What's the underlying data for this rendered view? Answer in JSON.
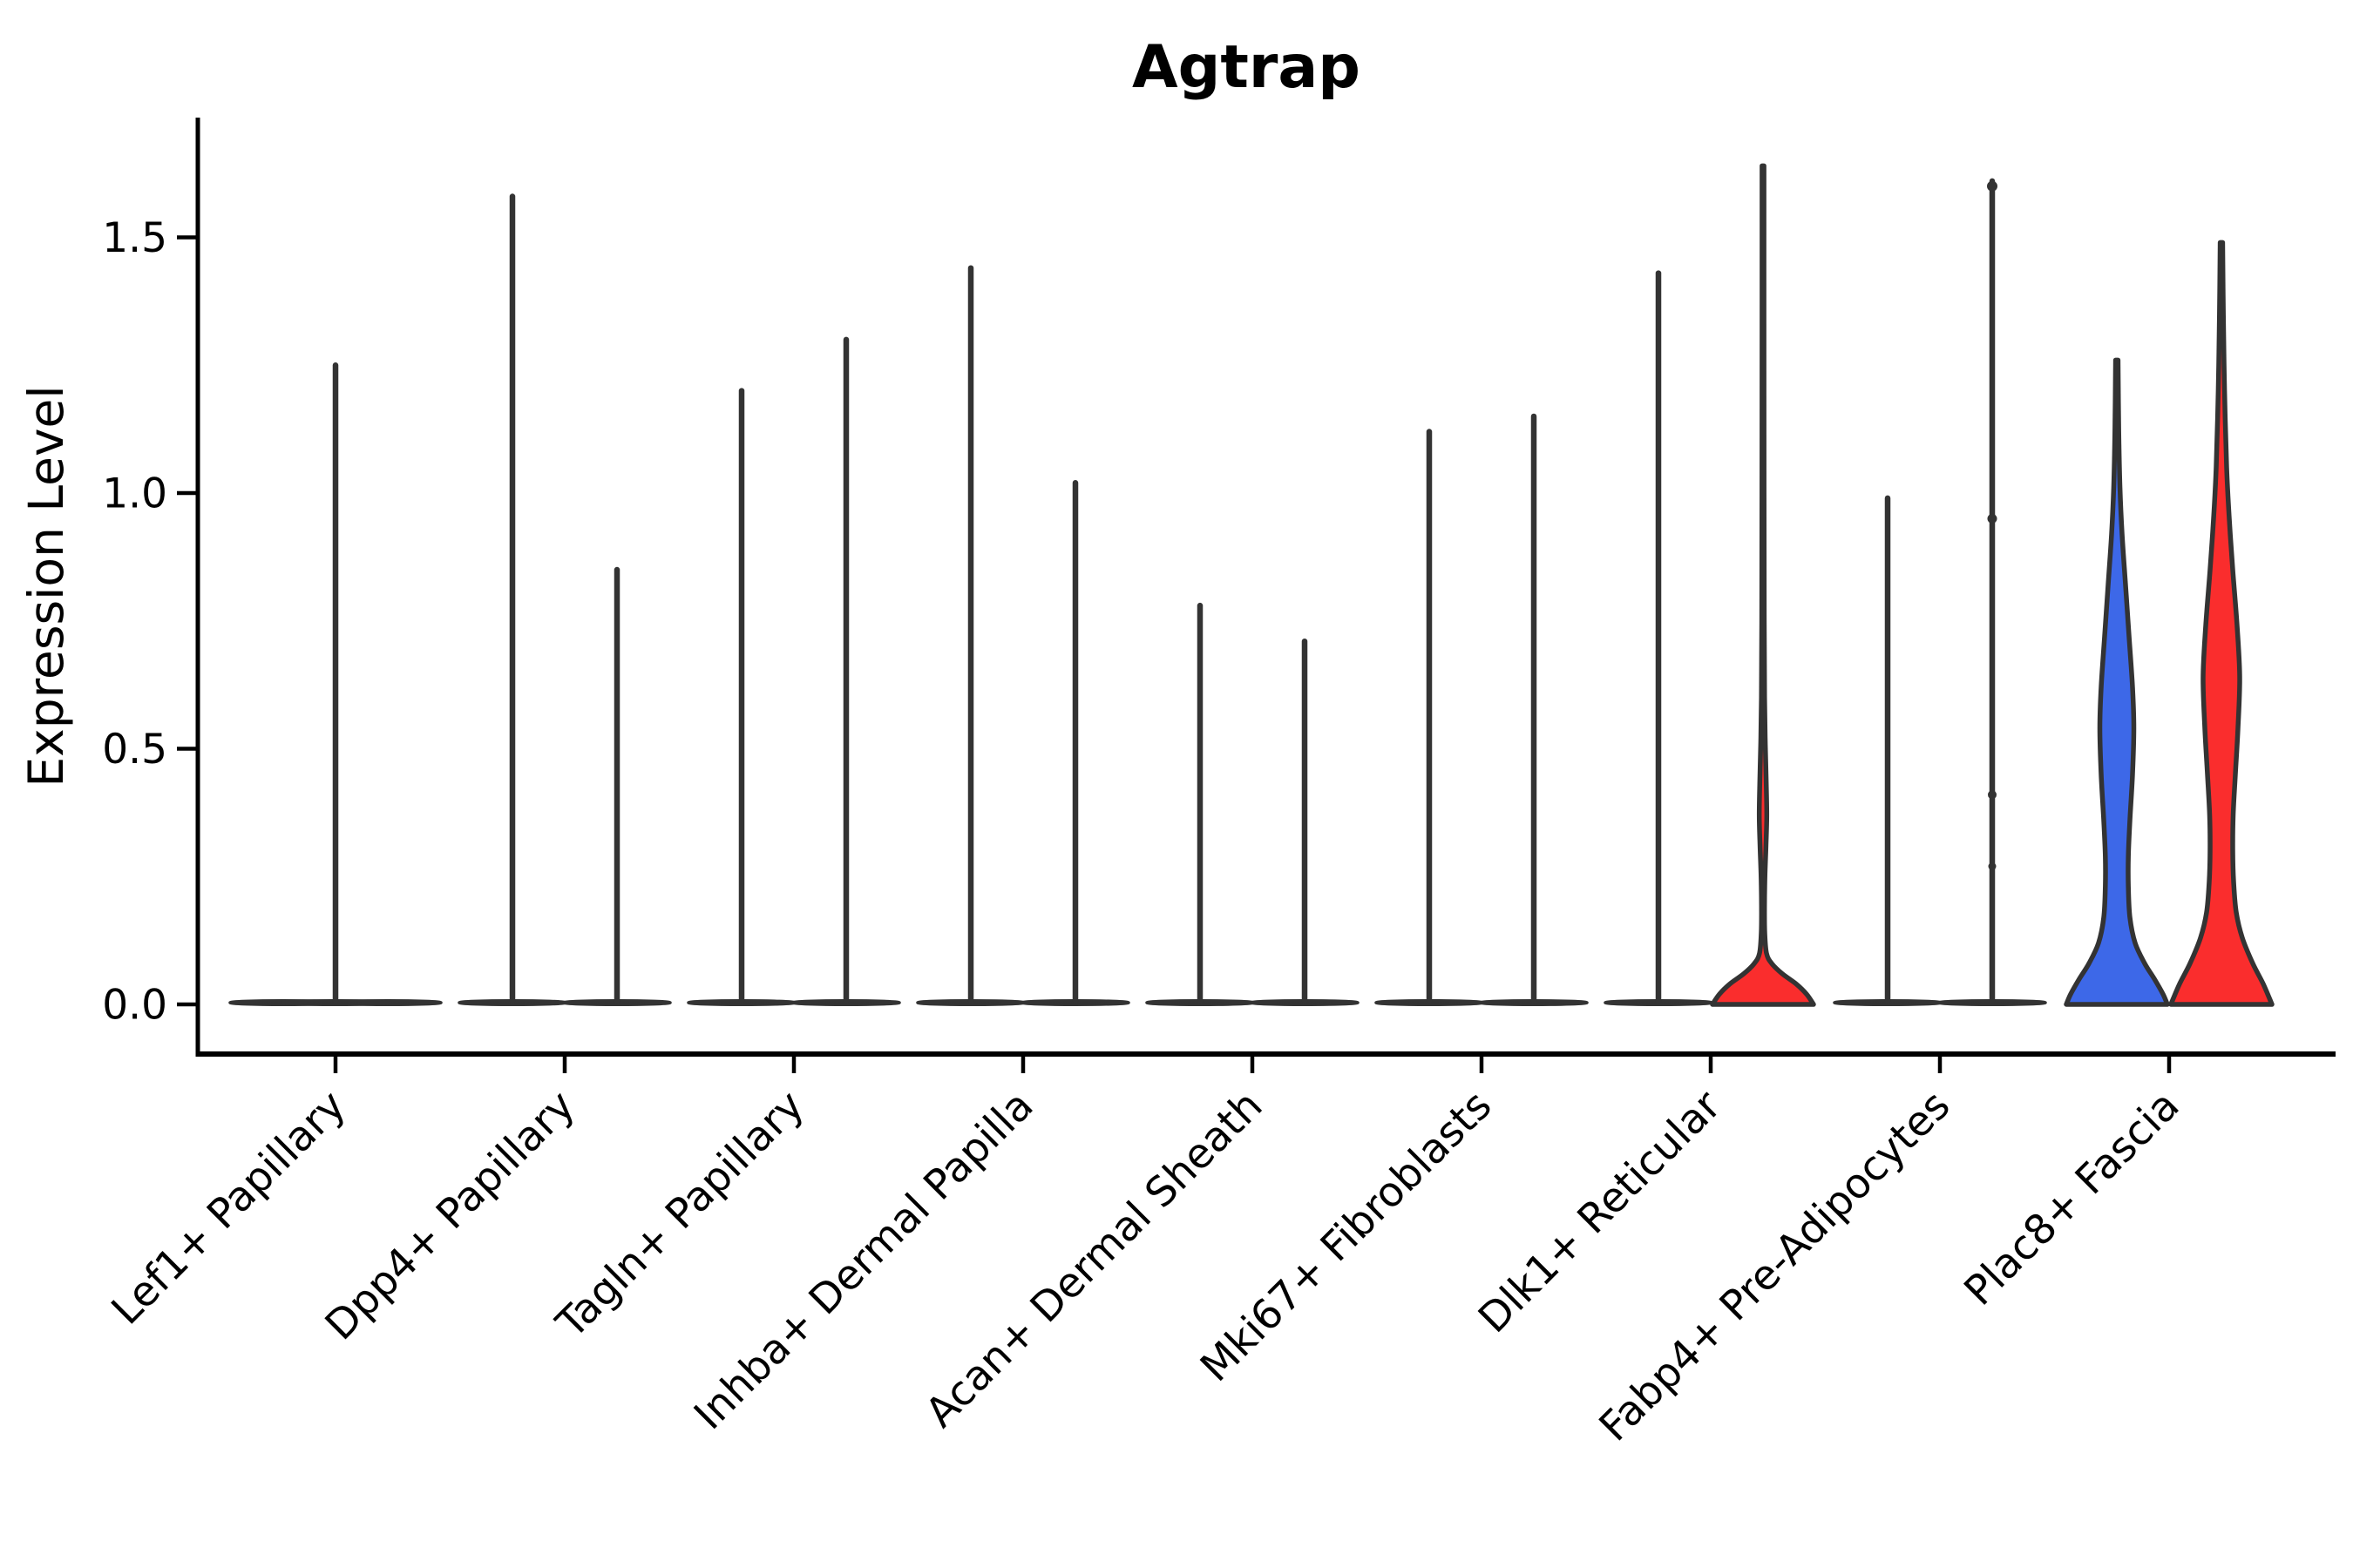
{
  "title": "Agtrap",
  "axes": {
    "ylabel": "Expression Level",
    "ytick_labels": [
      "0.0",
      "0.5",
      "1.0",
      "1.5"
    ]
  },
  "colors": {
    "blue_fill": "#3D68E8",
    "red_fill": "#FA2D2D",
    "outline": "#333333",
    "axis": "#000000"
  },
  "chart_data": {
    "type": "violin",
    "title": "Agtrap",
    "ylabel": "Expression Level",
    "yticks": [
      0.0,
      0.5,
      1.0,
      1.5
    ],
    "ylim": [
      -0.1,
      1.73
    ],
    "grid": false,
    "legend": "none",
    "categories": [
      "Lef1+ Papillary",
      "Dpp4+ Papillary",
      "Tagln+ Papillary",
      "Inhba+ Dermal Papilla",
      "Acan+ Dermal Sheath",
      "Mki67+ Fibroblasts",
      "Dlk1+ Reticular",
      "Fabp4+ Pre-Adipocytes",
      "Plac8+ Fascia"
    ],
    "violins": [
      {
        "category": "Lef1+ Papillary",
        "group": "left",
        "style": "flat"
      },
      {
        "category": "Lef1+ Papillary",
        "group": "right",
        "style": "flat"
      },
      {
        "category": "Lef1+ Papillary",
        "group": "center",
        "style": "spike",
        "max": 1.25
      },
      {
        "category": "Dpp4+ Papillary",
        "group": "left",
        "style": "spike",
        "max": 1.58
      },
      {
        "category": "Dpp4+ Papillary",
        "group": "right",
        "style": "spike",
        "max": 0.85
      },
      {
        "category": "Tagln+ Papillary",
        "group": "left",
        "style": "spike",
        "max": 1.2
      },
      {
        "category": "Tagln+ Papillary",
        "group": "right",
        "style": "spike",
        "max": 1.3
      },
      {
        "category": "Inhba+ Dermal Papilla",
        "group": "left",
        "style": "spike",
        "max": 1.44
      },
      {
        "category": "Inhba+ Dermal Papilla",
        "group": "right",
        "style": "spike",
        "max": 1.02
      },
      {
        "category": "Acan+ Dermal Sheath",
        "group": "left",
        "style": "spike",
        "max": 0.78
      },
      {
        "category": "Acan+ Dermal Sheath",
        "group": "right",
        "style": "spike",
        "max": 0.71
      },
      {
        "category": "Mki67+ Fibroblasts",
        "group": "left",
        "style": "spike",
        "max": 1.12
      },
      {
        "category": "Mki67+ Fibroblasts",
        "group": "right",
        "style": "spike",
        "max": 1.15
      },
      {
        "category": "Dlk1+ Reticular",
        "group": "left",
        "style": "spike",
        "max": 1.43
      },
      {
        "category": "Dlk1+ Reticular",
        "group": "right",
        "style": "density",
        "color": "red",
        "max": 1.64,
        "profile": [
          [
            1.64,
            1.1
          ],
          [
            1.35,
            1.1
          ],
          [
            1.0,
            1.2
          ],
          [
            0.75,
            1.4
          ],
          [
            0.6,
            1.8
          ],
          [
            0.51,
            2.6
          ],
          [
            0.44,
            3.6
          ],
          [
            0.37,
            4.3
          ],
          [
            0.31,
            3.4
          ],
          [
            0.25,
            2.2
          ],
          [
            0.19,
            1.7
          ],
          [
            0.14,
            2.0
          ],
          [
            0.1,
            4.0
          ],
          [
            0.08,
            10
          ],
          [
            0.06,
            22
          ],
          [
            0.04,
            38
          ],
          [
            0.02,
            50
          ],
          [
            0.0,
            58
          ]
        ]
      },
      {
        "category": "Fabp4+ Pre-Adipocytes",
        "group": "left",
        "style": "spike",
        "max": 0.99
      },
      {
        "category": "Fabp4+ Pre-Adipocytes",
        "group": "right",
        "style": "spike",
        "max": 1.61,
        "knobs": [
          1.6,
          0.95,
          0.41,
          0.27
        ]
      },
      {
        "category": "Plac8+ Fascia",
        "group": "left",
        "style": "density",
        "color": "blue",
        "max": 1.26,
        "profile": [
          [
            1.26,
            1.4
          ],
          [
            1.12,
            2.2
          ],
          [
            1.01,
            3.6
          ],
          [
            0.92,
            6
          ],
          [
            0.82,
            10
          ],
          [
            0.72,
            14
          ],
          [
            0.62,
            18
          ],
          [
            0.54,
            19.5
          ],
          [
            0.45,
            18
          ],
          [
            0.36,
            15
          ],
          [
            0.29,
            13.2
          ],
          [
            0.23,
            13.2
          ],
          [
            0.17,
            15
          ],
          [
            0.12,
            21
          ],
          [
            0.08,
            32
          ],
          [
            0.05,
            43
          ],
          [
            0.02,
            53
          ],
          [
            0.0,
            58
          ]
        ]
      },
      {
        "category": "Plac8+ Fascia",
        "group": "right",
        "style": "density",
        "color": "red",
        "max": 1.49,
        "profile": [
          [
            1.49,
            1.4
          ],
          [
            1.35,
            2.2
          ],
          [
            1.2,
            3.6
          ],
          [
            1.05,
            6
          ],
          [
            0.95,
            9
          ],
          [
            0.85,
            13
          ],
          [
            0.74,
            18
          ],
          [
            0.64,
            21
          ],
          [
            0.54,
            19
          ],
          [
            0.45,
            16
          ],
          [
            0.37,
            13.5
          ],
          [
            0.3,
            13
          ],
          [
            0.24,
            14
          ],
          [
            0.18,
            17
          ],
          [
            0.13,
            24
          ],
          [
            0.08,
            36
          ],
          [
            0.04,
            48
          ],
          [
            0.0,
            58
          ]
        ]
      }
    ]
  }
}
